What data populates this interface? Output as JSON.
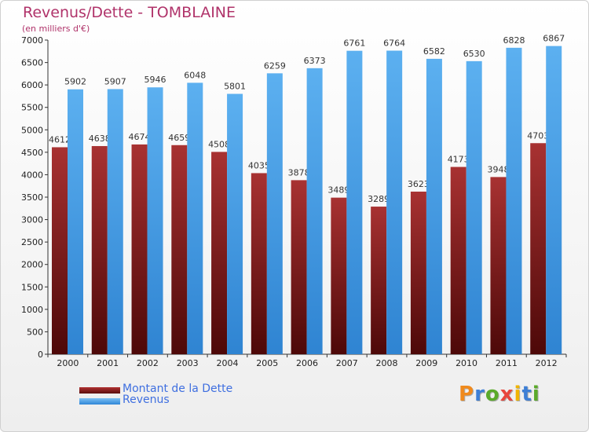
{
  "chart_data": {
    "type": "bar",
    "title": "Revenus/Dette - TOMBLAINE",
    "subtitle": "(en milliers d'€)",
    "categories": [
      "2000",
      "2001",
      "2002",
      "2003",
      "2004",
      "2005",
      "2006",
      "2007",
      "2008",
      "2009",
      "2010",
      "2011",
      "2012"
    ],
    "series": [
      {
        "name": "Montant de la Dette",
        "color": "#7a1d1d",
        "values": [
          4612,
          4638,
          4674,
          4659,
          4508,
          4035,
          3878,
          3489,
          3289,
          3623,
          4173,
          3948,
          4703
        ]
      },
      {
        "name": "Revenus",
        "color": "#4fa3e8",
        "values": [
          5902,
          5907,
          5946,
          6048,
          5801,
          6259,
          6373,
          6761,
          6764,
          6582,
          6530,
          6828,
          6867
        ]
      }
    ],
    "ylim": [
      0,
      7000
    ],
    "ytick_step": 500,
    "grid": false,
    "legend_position": "bottom-left",
    "xlabel": "",
    "ylabel": ""
  },
  "logo": {
    "text": "Proxiti",
    "colors": [
      "#f08a1c",
      "#3d7fd6",
      "#5aaa2a",
      "#e8453c",
      "#f0b400",
      "#3d7fd6",
      "#5aaa2a"
    ]
  }
}
